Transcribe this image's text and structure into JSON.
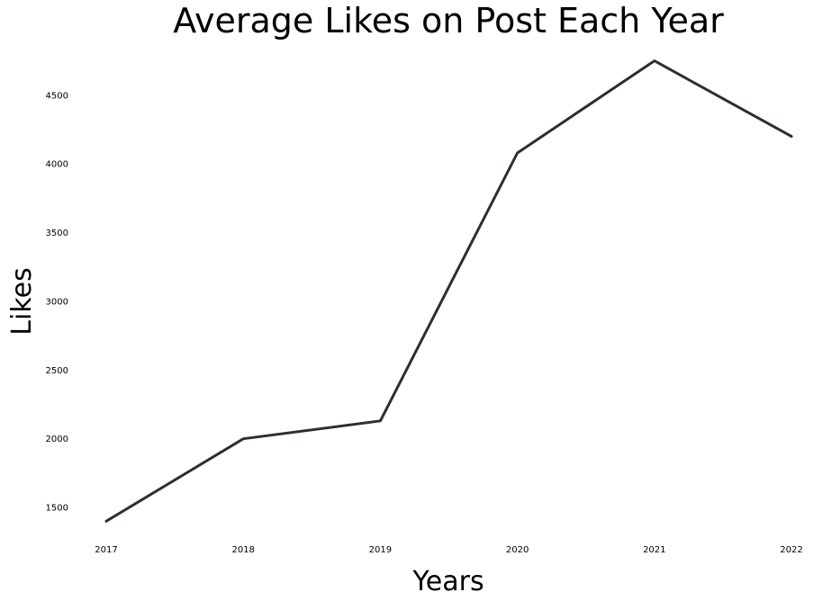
{
  "chart_data": {
    "type": "line",
    "title": "Average Likes on Post Each Year",
    "xlabel": "Years",
    "ylabel": "Likes",
    "x": [
      "2017",
      "2018",
      "2019",
      "2020",
      "2021",
      "2022"
    ],
    "series": [
      {
        "values": [
          1400,
          2000,
          2130,
          4080,
          4750,
          4200
        ]
      }
    ],
    "yticks": [
      1500,
      2000,
      2500,
      3000,
      3500,
      4000,
      4500
    ],
    "ylim": [
      1330,
      4800
    ],
    "grid": false,
    "legend": "none",
    "colors": {
      "line": "#2b302f",
      "text": "#000000",
      "background": "#ffffff"
    }
  }
}
